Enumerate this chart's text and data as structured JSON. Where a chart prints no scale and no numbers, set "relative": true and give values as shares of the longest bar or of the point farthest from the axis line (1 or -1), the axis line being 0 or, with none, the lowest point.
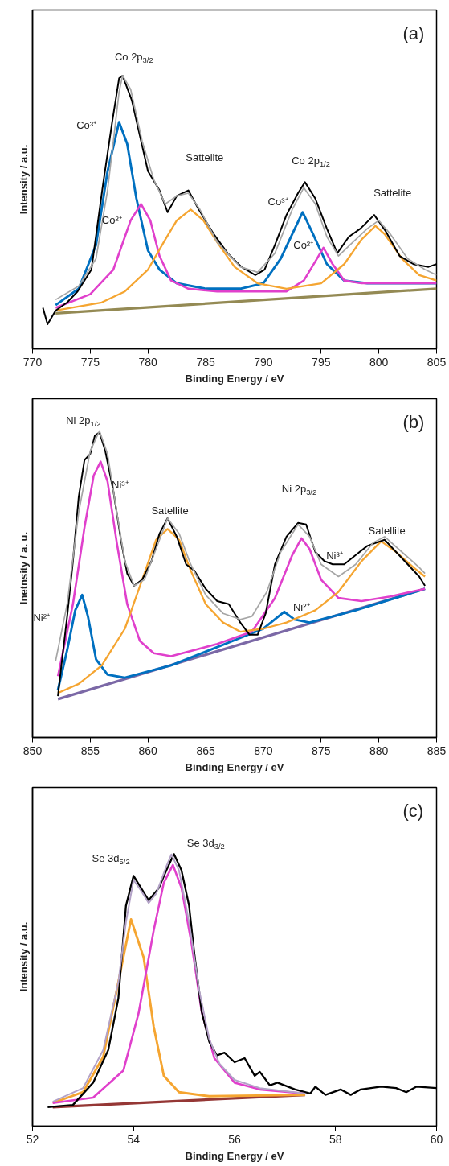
{
  "chart_data": [
    {
      "type": "line",
      "relative": true,
      "xlabel": "Binding Energy / eV",
      "ylabel": "Intensity / a.u.",
      "xlim": [
        770,
        805
      ],
      "xticks": [
        770,
        775,
        780,
        785,
        790,
        795,
        800,
        805
      ],
      "tick_labels": "x",
      "annotations": [
        "(a)",
        "Co 2p$_{3/2}$",
        "Co³⁺",
        "Co²⁺",
        "Sattelite",
        "Co 2p$_{1/2}$",
        "Co³⁺",
        "Co²⁺",
        "Sattelite"
      ],
      "series": [
        {
          "color": "#948a54",
          "x": [
            772,
            805
          ],
          "values": [
            0.13,
            0.22
          ]
        },
        {
          "color": "#0070c0",
          "x": [
            772,
            774,
            775.5,
            776.5,
            777.5,
            778.2,
            779,
            780,
            781,
            782.5,
            785,
            788,
            790,
            791.5,
            792.5,
            793.4,
            794.3,
            795.5,
            797,
            799,
            805
          ],
          "values": [
            0.16,
            0.22,
            0.38,
            0.65,
            0.83,
            0.75,
            0.55,
            0.36,
            0.29,
            0.24,
            0.22,
            0.22,
            0.24,
            0.33,
            0.42,
            0.5,
            0.42,
            0.31,
            0.25,
            0.24,
            0.24
          ]
        },
        {
          "color": "#e040cc",
          "x": [
            772,
            775,
            777,
            778.5,
            779.4,
            780.2,
            781,
            782,
            783.5,
            786,
            790,
            792,
            793.5,
            794.5,
            795.2,
            796,
            797,
            798.5,
            805
          ],
          "values": [
            0.15,
            0.2,
            0.29,
            0.47,
            0.53,
            0.47,
            0.34,
            0.25,
            0.22,
            0.21,
            0.21,
            0.21,
            0.25,
            0.32,
            0.37,
            0.31,
            0.25,
            0.24,
            0.24
          ]
        },
        {
          "color": "#f5a531",
          "x": [
            772,
            776,
            778,
            780,
            781.5,
            782.5,
            783.7,
            784.8,
            786,
            787.5,
            789.5,
            792,
            795,
            797,
            798.5,
            799.7,
            800.5,
            802,
            803.5,
            805
          ],
          "values": [
            0.14,
            0.17,
            0.21,
            0.29,
            0.4,
            0.47,
            0.51,
            0.47,
            0.39,
            0.3,
            0.24,
            0.22,
            0.24,
            0.31,
            0.4,
            0.45,
            0.42,
            0.33,
            0.27,
            0.25
          ]
        },
        {
          "color": "#000000",
          "x": [
            770.9,
            771.3,
            772.0,
            773.0,
            773.9,
            775.1,
            776.1,
            776.9,
            777.5,
            777.8,
            778.6,
            779.3,
            780.0,
            781.0,
            781.7,
            782.5,
            783.5,
            784.4,
            785.7,
            786.9,
            788.1,
            789.3,
            790.1,
            791.0,
            792.0,
            793.0,
            793.6,
            794.5,
            795.5,
            796.4,
            797.4,
            798.4,
            799.6,
            800.6,
            801.8,
            803.0,
            804.3,
            805.0
          ],
          "values": [
            0.15,
            0.09,
            0.14,
            0.17,
            0.21,
            0.29,
            0.6,
            0.83,
            0.99,
            1.0,
            0.91,
            0.78,
            0.65,
            0.58,
            0.5,
            0.56,
            0.58,
            0.51,
            0.42,
            0.35,
            0.3,
            0.27,
            0.29,
            0.38,
            0.49,
            0.57,
            0.61,
            0.55,
            0.44,
            0.35,
            0.41,
            0.44,
            0.49,
            0.43,
            0.34,
            0.31,
            0.3,
            0.31
          ]
        },
        {
          "color": "#a6a6a6",
          "x": [
            772,
            774,
            775.5,
            776.5,
            777.5,
            777.8,
            778.5,
            779.5,
            780.5,
            781.5,
            782.5,
            783.5,
            784.5,
            786,
            788,
            789.5,
            791,
            792.5,
            793.5,
            794.5,
            795.5,
            796.5,
            797.5,
            799,
            800,
            801,
            802.5,
            804,
            805
          ],
          "values": [
            0.18,
            0.23,
            0.33,
            0.58,
            0.94,
            1.0,
            0.95,
            0.76,
            0.62,
            0.53,
            0.56,
            0.57,
            0.51,
            0.39,
            0.3,
            0.28,
            0.35,
            0.51,
            0.59,
            0.53,
            0.41,
            0.34,
            0.38,
            0.44,
            0.47,
            0.42,
            0.33,
            0.29,
            0.27
          ]
        }
      ]
    },
    {
      "type": "line",
      "relative": true,
      "xlabel": "Binding Energy / eV",
      "ylabel": "Inetnsity / a. u.",
      "xlim": [
        850,
        885
      ],
      "xticks": [
        850,
        855,
        860,
        865,
        870,
        875,
        880,
        885
      ],
      "tick_labels": "x",
      "annotations": [
        "(b)",
        "Ni 2p$_{1/2}$",
        "Ni³⁺",
        "Satellite",
        "Ni 2p$_{3/2}$",
        "Ni³⁺",
        "Satellite",
        "Ni²⁺",
        "Ni²⁺"
      ],
      "series": [
        {
          "color": "#7b68a6",
          "x": [
            852.2,
            884
          ],
          "values": [
            0.125,
            0.485
          ]
        },
        {
          "color": "#0070c0",
          "x": [
            852.2,
            853,
            853.7,
            854.3,
            854.8,
            855.5,
            856.5,
            858,
            862,
            866,
            870,
            871.8,
            872.7,
            874,
            878,
            884
          ],
          "values": [
            0.155,
            0.285,
            0.415,
            0.465,
            0.395,
            0.255,
            0.205,
            0.195,
            0.235,
            0.295,
            0.355,
            0.41,
            0.385,
            0.375,
            0.415,
            0.485
          ]
        },
        {
          "color": "#e040cc",
          "x": [
            852.2,
            853.5,
            854.5,
            855.3,
            855.9,
            856.5,
            857.3,
            858.2,
            859.3,
            860.5,
            862,
            866,
            869,
            871,
            872.5,
            873.3,
            874,
            875,
            876.5,
            878.5,
            881,
            884
          ],
          "values": [
            0.2,
            0.435,
            0.685,
            0.855,
            0.9,
            0.835,
            0.635,
            0.435,
            0.315,
            0.275,
            0.265,
            0.305,
            0.345,
            0.455,
            0.595,
            0.65,
            0.615,
            0.515,
            0.455,
            0.445,
            0.46,
            0.485
          ]
        },
        {
          "color": "#f5a531",
          "x": [
            852.2,
            854,
            856,
            858,
            859.5,
            860.7,
            861.7,
            862.7,
            863.7,
            865,
            866.5,
            868,
            870,
            872,
            874.5,
            876.5,
            878.5,
            880.2,
            881.5,
            883,
            884
          ],
          "values": [
            0.145,
            0.175,
            0.235,
            0.355,
            0.515,
            0.645,
            0.68,
            0.645,
            0.545,
            0.435,
            0.375,
            0.345,
            0.355,
            0.375,
            0.415,
            0.475,
            0.575,
            0.64,
            0.605,
            0.555,
            0.525
          ]
        },
        {
          "color": "#000000",
          "x": [
            852.2,
            852.5,
            853,
            853.5,
            854,
            854.5,
            855,
            855.4,
            855.8,
            856.3,
            857,
            857.7,
            858.2,
            858.8,
            859.5,
            860.3,
            861,
            861.7,
            862.5,
            863.3,
            864,
            865,
            866,
            867,
            868,
            868.8,
            869.5,
            870.2,
            871,
            872,
            873,
            873.7,
            874.5,
            875.3,
            876,
            877,
            878,
            879,
            880.5,
            881.5,
            882.5,
            883.5,
            884
          ],
          "values": [
            0.135,
            0.235,
            0.395,
            0.575,
            0.785,
            0.905,
            0.925,
            0.985,
            0.995,
            0.935,
            0.805,
            0.635,
            0.535,
            0.495,
            0.515,
            0.575,
            0.665,
            0.715,
            0.655,
            0.565,
            0.545,
            0.485,
            0.445,
            0.435,
            0.375,
            0.335,
            0.335,
            0.405,
            0.565,
            0.655,
            0.7,
            0.695,
            0.605,
            0.575,
            0.565,
            0.565,
            0.595,
            0.625,
            0.645,
            0.605,
            0.565,
            0.525,
            0.495
          ]
        },
        {
          "color": "#a6a6a6",
          "x": [
            852,
            853,
            854,
            855,
            855.8,
            856.5,
            857.3,
            858,
            858.8,
            859.7,
            860.7,
            861.7,
            862.7,
            863.7,
            865,
            866.5,
            868,
            869,
            870.3,
            871.5,
            873,
            874,
            875,
            876.5,
            878,
            879.5,
            880.5,
            882,
            883.5,
            884
          ],
          "values": [
            0.25,
            0.435,
            0.735,
            0.935,
            1.0,
            0.925,
            0.735,
            0.575,
            0.495,
            0.515,
            0.615,
            0.715,
            0.665,
            0.565,
            0.465,
            0.405,
            0.385,
            0.395,
            0.475,
            0.605,
            0.695,
            0.655,
            0.565,
            0.525,
            0.565,
            0.635,
            0.655,
            0.605,
            0.555,
            0.535
          ]
        }
      ]
    },
    {
      "type": "line",
      "relative": true,
      "xlabel": "Binding Energy / eV",
      "ylabel": "Intensity / a.u.",
      "xlim": [
        52,
        60
      ],
      "xticks": [
        52,
        54,
        56,
        58,
        60
      ],
      "tick_labels": "x",
      "annotations": [
        "(c)",
        "Se 3d$_{5/2}$",
        "Se 3d$_{3/2}$"
      ],
      "series": [
        {
          "color": "#953735",
          "x": [
            52.4,
            57.4
          ],
          "values": [
            0.07,
            0.115
          ]
        },
        {
          "color": "#f5a531",
          "x": [
            52.4,
            53.0,
            53.4,
            53.7,
            53.95,
            54.2,
            54.4,
            54.6,
            54.9,
            55.5,
            57.4
          ],
          "values": [
            0.085,
            0.125,
            0.255,
            0.53,
            0.76,
            0.62,
            0.365,
            0.185,
            0.125,
            0.11,
            0.115
          ]
        },
        {
          "color": "#e040cc",
          "x": [
            52.4,
            53.2,
            53.8,
            54.1,
            54.4,
            54.6,
            54.78,
            54.95,
            55.15,
            55.35,
            55.6,
            56.0,
            56.5,
            57.4
          ],
          "values": [
            0.085,
            0.105,
            0.205,
            0.415,
            0.72,
            0.895,
            0.96,
            0.875,
            0.67,
            0.42,
            0.25,
            0.16,
            0.135,
            0.12
          ]
        },
        {
          "color": "#000000",
          "x": [
            52.3,
            52.8,
            53.2,
            53.5,
            53.7,
            53.85,
            54.0,
            54.15,
            54.3,
            54.5,
            54.65,
            54.8,
            54.95,
            55.1,
            55.2,
            55.35,
            55.5,
            55.65,
            55.8,
            56.0,
            56.2,
            56.4,
            56.5,
            56.7,
            56.85,
            57.2,
            57.5,
            57.6,
            57.8,
            58.1,
            58.3,
            58.5,
            58.9,
            59.2,
            59.4,
            59.6,
            60.0
          ],
          "values": [
            0.07,
            0.078,
            0.16,
            0.28,
            0.47,
            0.81,
            0.92,
            0.875,
            0.83,
            0.875,
            0.94,
            1.0,
            0.94,
            0.81,
            0.64,
            0.42,
            0.31,
            0.26,
            0.27,
            0.235,
            0.25,
            0.185,
            0.2,
            0.15,
            0.16,
            0.135,
            0.12,
            0.145,
            0.115,
            0.135,
            0.115,
            0.135,
            0.145,
            0.14,
            0.125,
            0.145,
            0.14
          ]
        },
        {
          "color": "#b3a2c7",
          "x": [
            52.4,
            53.0,
            53.4,
            53.7,
            53.85,
            54.0,
            54.15,
            54.3,
            54.45,
            54.65,
            54.75,
            54.9,
            55.1,
            55.3,
            55.5,
            55.7,
            56.0,
            56.5,
            57.4
          ],
          "values": [
            0.09,
            0.14,
            0.28,
            0.53,
            0.75,
            0.905,
            0.865,
            0.82,
            0.855,
            0.955,
            0.999,
            0.94,
            0.75,
            0.5,
            0.32,
            0.23,
            0.17,
            0.14,
            0.12
          ]
        }
      ]
    }
  ]
}
